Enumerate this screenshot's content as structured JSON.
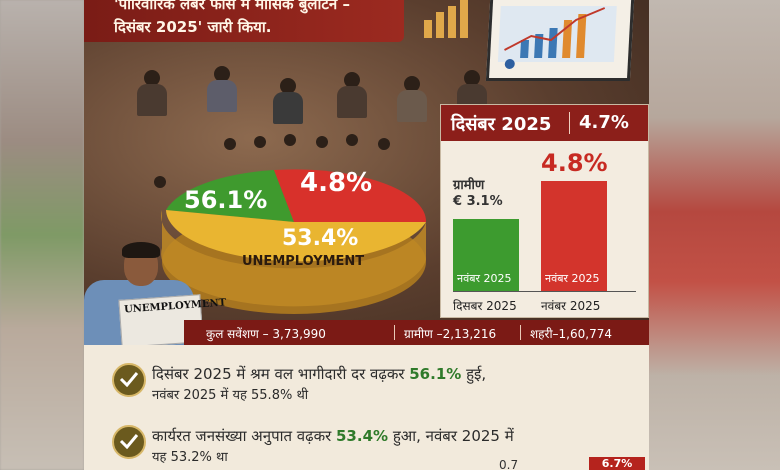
{
  "banner": {
    "line1": "'पारिवारिक लेबर फोर्स में मासिक बुलेटिन –",
    "line2": "दिसंबर 2025' जारी किया."
  },
  "pie": {
    "slices": [
      {
        "label": "56.1%",
        "color": "#3f9a2e"
      },
      {
        "label": "4.8%",
        "color": "#d8312b"
      },
      {
        "label": "53.4%",
        "color": "#e9b531"
      }
    ],
    "center_label": "UNEMPLOYMENT"
  },
  "newspaper": {
    "text": "UNEMPLOYMENT"
  },
  "panel": {
    "month": "दिसंबर 2025",
    "rate": "4.7%",
    "urban_value": "4.8%",
    "rural_label": "ग्रामीण",
    "rural_value": "€ 3.1%",
    "bar_label_left": "नवंबर 2025",
    "bar_label_right": "नवंबर 2025",
    "x_left": "दिसबर 2025",
    "x_right": "नवंबर 2025",
    "colors": {
      "green": "#3d9b2f",
      "red": "#d3342c",
      "header": "#8c1f1a"
    }
  },
  "stats": {
    "total": "कुल सवेंशण – 3,73,990",
    "rural": "ग्रामीण –2,13,216",
    "urban": "शहरी–1,60,774"
  },
  "points": [
    {
      "pre": "दिसंबर 2025 में श्रम वल भागीदारी दर वढ़कर ",
      "value": "56.1%",
      "post": " हुई,",
      "line2": "नवंबर 2025 में यह 55.8% थी"
    },
    {
      "pre": "कार्यरत जनसंख्या अनुपात वढ़कर ",
      "value": "53.4%",
      "post": " हुआ, नवंबर 2025 में",
      "line2": "यह 53.2% था"
    }
  ],
  "corner_badge": "6.7%",
  "corner_text": "0.7"
}
